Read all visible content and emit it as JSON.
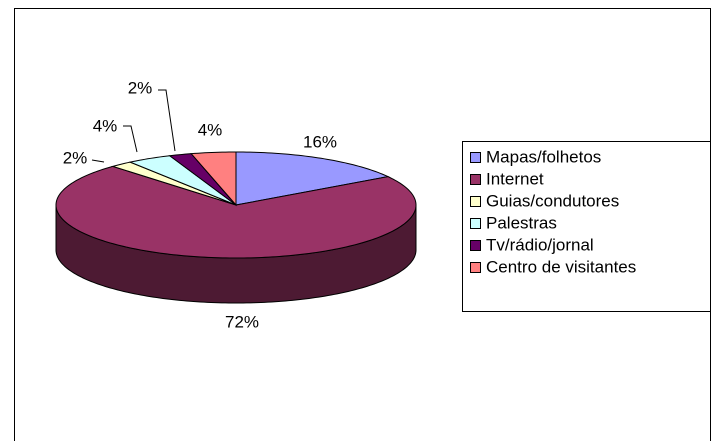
{
  "chart_data": {
    "type": "pie3d",
    "categories": [
      "Mapas/folhetos",
      "Internet",
      "Guias/condutores",
      "Palestras",
      "Tv/rádio/jornal",
      "Centro de visitantes"
    ],
    "values": [
      16,
      72,
      2,
      4,
      2,
      4
    ],
    "value_labels": [
      "16%",
      "72%",
      "2%",
      "4%",
      "2%",
      "4%"
    ],
    "colors": [
      "#9999ff",
      "#993366",
      "#ffffcc",
      "#ccffff",
      "#660066",
      "#ff8080"
    ],
    "legend": "right"
  }
}
